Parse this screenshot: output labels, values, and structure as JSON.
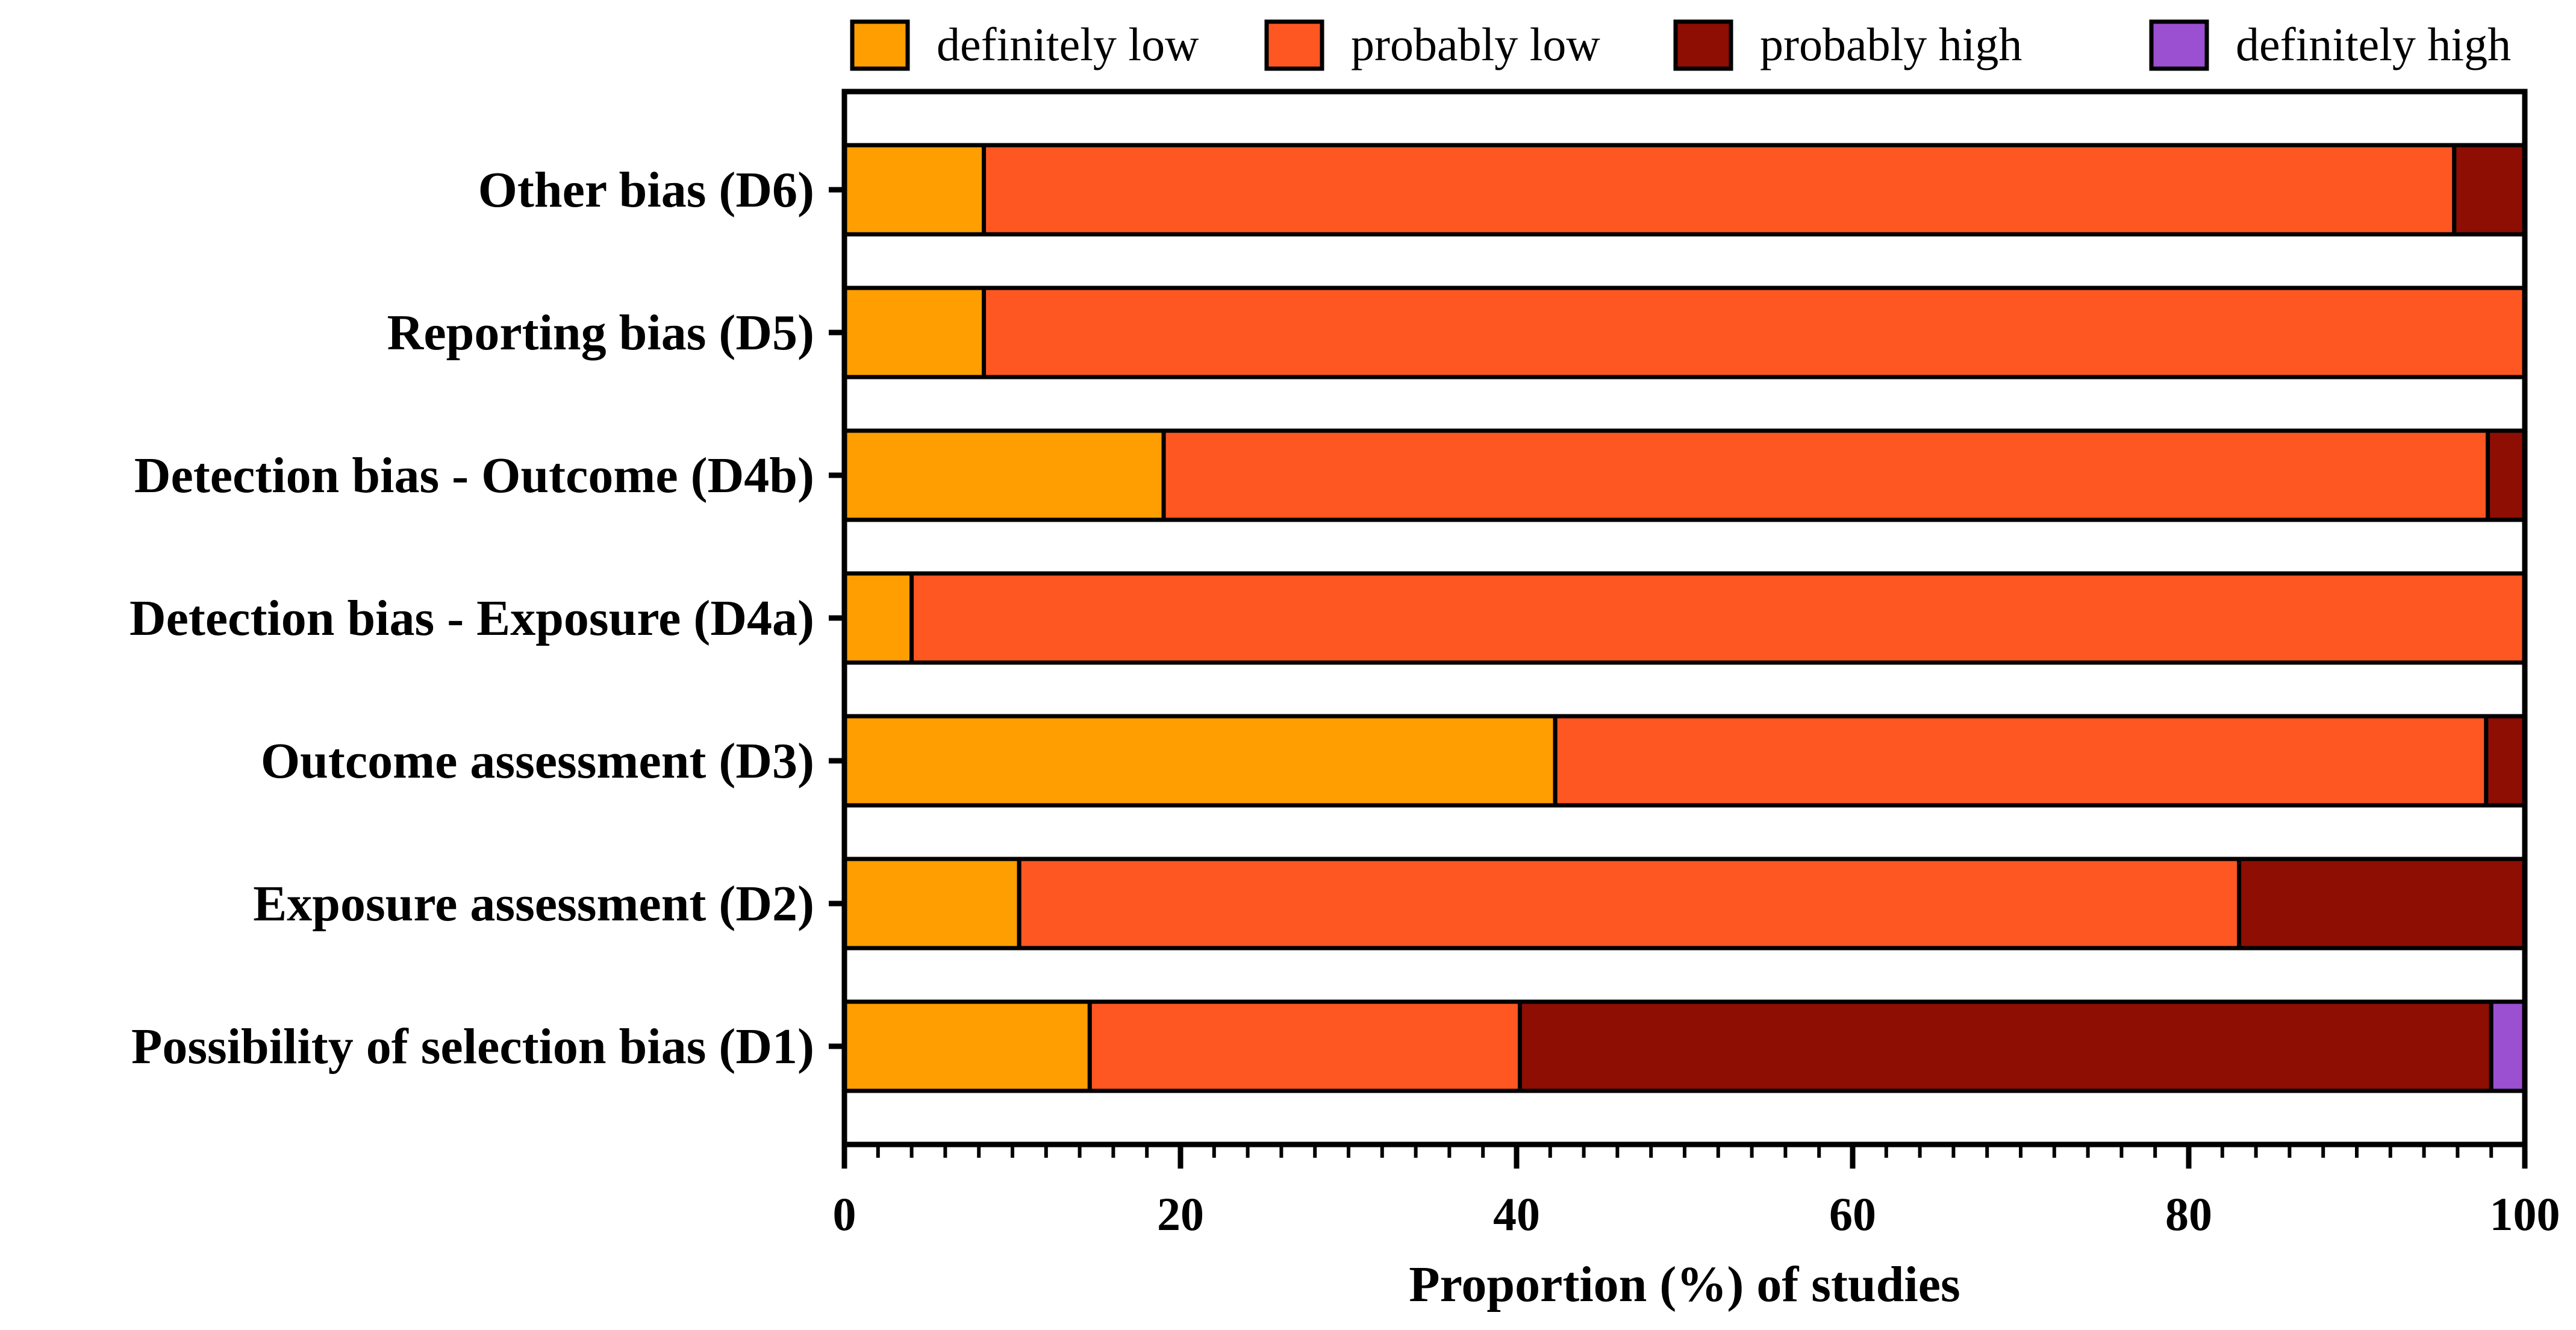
{
  "chart_data": {
    "type": "bar",
    "orientation": "horizontal",
    "stacked": true,
    "title": "",
    "xlabel": "Proportion (%) of studies",
    "ylabel": "",
    "xlim": [
      0,
      100
    ],
    "x_ticks": [
      0,
      20,
      40,
      60,
      80,
      100
    ],
    "x_tick_labels": [
      "0",
      "20",
      "40",
      "60",
      "80",
      "100"
    ],
    "x_minor_step": 2,
    "grid": false,
    "legend_position": "top",
    "categories": [
      "Other bias (D6)",
      "Reporting bias (D5)",
      "Detection bias - Outcome (D4b)",
      "Detection bias - Exposure (D4a)",
      "Outcome assessment (D3)",
      "Exposure assessment (D2)",
      "Possibility of selection bias (D1)"
    ],
    "series": [
      {
        "name": "definitely low",
        "color": "#FF9E00",
        "values": [
          8.3,
          8.3,
          19.0,
          4.0,
          42.3,
          10.4,
          14.6
        ]
      },
      {
        "name": "probably low",
        "color": "#FF5722",
        "values": [
          87.5,
          91.7,
          78.8,
          96.0,
          55.4,
          72.6,
          25.6
        ]
      },
      {
        "name": "probably high",
        "color": "#8E0E04",
        "values": [
          4.2,
          0,
          2.2,
          0,
          2.3,
          17.0,
          57.8
        ]
      },
      {
        "name": "definitely high",
        "color": "#9B4FD1",
        "values": [
          0,
          0,
          0,
          0,
          0,
          0,
          2.0
        ]
      }
    ]
  }
}
